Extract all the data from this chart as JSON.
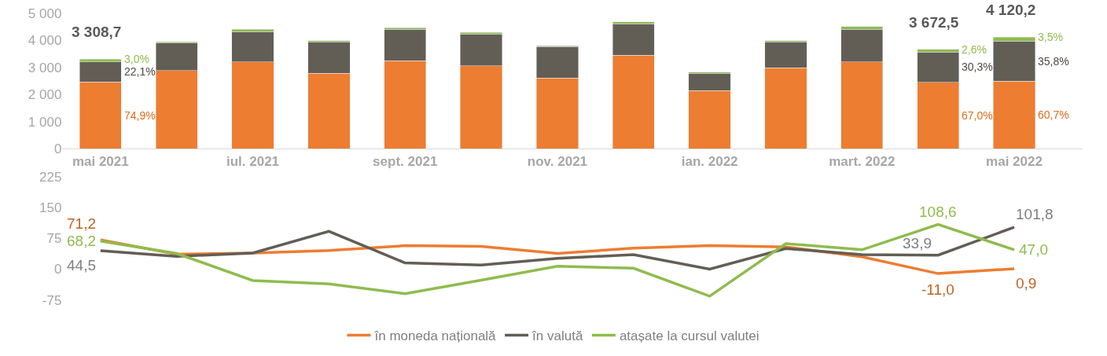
{
  "chart_data": [
    {
      "type": "bar",
      "stacked": true,
      "categories": [
        "mai 2021",
        null,
        "iul. 2021",
        null,
        "sept. 2021",
        null,
        "nov. 2021",
        null,
        "ian. 2022",
        null,
        "mart. 2022",
        null,
        "mai 2022"
      ],
      "ylim": [
        0,
        5000
      ],
      "yticks": [
        0,
        {
          "value": 1000,
          "label": "1 000"
        },
        {
          "value": 2000,
          "label": "2 000"
        },
        {
          "value": 3000,
          "label": "3 000"
        },
        {
          "value": 4000,
          "label": "4 000"
        },
        {
          "value": 5000,
          "label": "5 000"
        }
      ],
      "series": [
        {
          "color": "#ed7d31",
          "values": [
            2478,
            2890,
            3210,
            2790,
            3250,
            3070,
            2610,
            3450,
            2150,
            2990,
            3210,
            2461,
            2501
          ]
        },
        {
          "color": "#635e55",
          "values": [
            731,
            1020,
            1120,
            1160,
            1160,
            1170,
            1160,
            1160,
            640,
            960,
            1210,
            1113,
            1475
          ]
        },
        {
          "color": "#8fbc4e",
          "values": [
            99.7,
            40,
            80,
            40,
            60,
            50,
            40,
            80,
            40,
            40,
            90,
            98.5,
            144.2
          ]
        }
      ],
      "totals": [
        "3 308,7",
        null,
        null,
        null,
        null,
        null,
        null,
        null,
        null,
        null,
        null,
        "3 672,5",
        "4 120,2"
      ],
      "annotations": [
        "74,9%",
        "22,1%",
        "3,0%",
        "67,0%",
        "30,3%",
        "2,6%",
        "60,7%",
        "35,8%",
        "3,5%"
      ]
    },
    {
      "type": "line",
      "categories": [
        null,
        null,
        null,
        null,
        null,
        null,
        null,
        null,
        null,
        null,
        null,
        null,
        null
      ],
      "tick_labels": "y",
      "ylim": [
        -75,
        225
      ],
      "yticks": [
        -75,
        0,
        75,
        150,
        225
      ],
      "legend": "bottom",
      "series": [
        {
          "name": "în moneda națională",
          "color": "#ed7d31",
          "values": [
            71.2,
            36,
            39,
            45,
            57,
            55,
            38,
            51,
            57,
            54,
            30,
            -11.0,
            0.9
          ],
          "value_labels": [
            "71,2",
            null,
            null,
            null,
            null,
            null,
            null,
            null,
            null,
            null,
            null,
            "-11,0",
            "0,9"
          ]
        },
        {
          "name": "în valută",
          "color": "#635e55",
          "values": [
            44.5,
            31,
            39,
            92,
            15,
            10,
            26,
            35,
            0,
            50,
            35,
            33.9,
            101.8
          ],
          "value_labels": [
            "44,5",
            null,
            null,
            null,
            null,
            null,
            null,
            null,
            null,
            null,
            null,
            "33,9",
            "101,8"
          ]
        },
        {
          "name": "atașate la cursul valutei",
          "color": "#8fbc4e",
          "values": [
            68.2,
            38,
            -28,
            -36,
            -60,
            -27,
            7,
            2,
            -66,
            62,
            47,
            108.6,
            47.0
          ],
          "value_labels": [
            "68,2",
            null,
            null,
            null,
            null,
            null,
            null,
            null,
            null,
            null,
            null,
            "108,6",
            "47,0"
          ]
        }
      ]
    }
  ]
}
